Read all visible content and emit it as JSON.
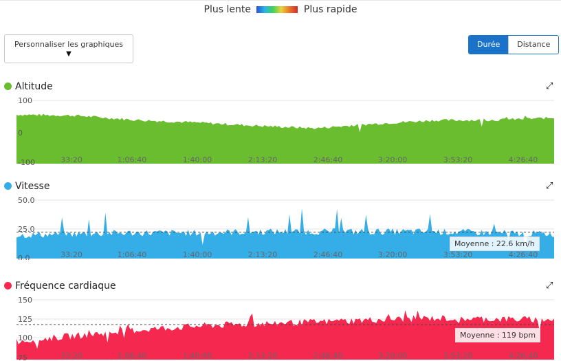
{
  "legend": {
    "slow": "Plus lente",
    "fast": "Plus rapide"
  },
  "customize_label": "Personnaliser les graphiques",
  "toggle": {
    "duration": "Durée",
    "distance": "Distance"
  },
  "x_ticks": [
    "33:20",
    "1:06:40",
    "1:40:00",
    "2:13:20",
    "2:46:40",
    "3:20:00",
    "3:53:20",
    "4:26:40"
  ],
  "colors": {
    "altitude": "#6abd2f",
    "speed": "#35ade6",
    "hr": "#f5284f",
    "accent": "#1a73c8"
  },
  "charts": [
    {
      "key": "altitude",
      "title": "Altitude",
      "y_ticks": [
        "100",
        "0",
        "-100"
      ],
      "avg_label": ""
    },
    {
      "key": "speed",
      "title": "Vitesse",
      "y_ticks": [
        "50.0",
        "25.0",
        "0.0"
      ],
      "avg_label": "Moyenne : 22.6 km/h"
    },
    {
      "key": "hr",
      "title": "Fréquence cardiaque",
      "y_ticks": [
        "150",
        "125",
        "100",
        "75"
      ],
      "avg_label": "Moyenne : 119 bpm"
    }
  ],
  "chart_data": [
    {
      "type": "area",
      "title": "Altitude",
      "ylim": [
        -100,
        100
      ],
      "x": [
        "0:00",
        "33:20",
        "1:06:40",
        "1:40:00",
        "2:13:20",
        "2:46:40",
        "3:20:00",
        "3:53:20",
        "4:26:40",
        "4:40:00"
      ],
      "values": [
        55,
        52,
        38,
        30,
        20,
        12,
        26,
        37,
        38,
        45
      ]
    },
    {
      "type": "area",
      "title": "Vitesse",
      "ylim": [
        0,
        50
      ],
      "average": 22.6,
      "x": [
        "0:00",
        "33:20",
        "1:06:40",
        "1:40:00",
        "2:13:20",
        "2:46:40",
        "3:20:00",
        "3:53:20",
        "4:26:40",
        "4:40:00"
      ],
      "values": [
        20,
        21,
        22,
        22,
        23,
        23,
        23,
        23,
        22,
        21
      ]
    },
    {
      "type": "area",
      "title": "Fréquence cardiaque",
      "ylim": [
        75,
        150
      ],
      "average": 119,
      "x": [
        "0:00",
        "33:20",
        "1:06:40",
        "1:40:00",
        "2:13:20",
        "2:46:40",
        "3:20:00",
        "3:53:20",
        "4:26:40",
        "4:40:00"
      ],
      "values": [
        98,
        105,
        112,
        117,
        120,
        122,
        125,
        127,
        126,
        125
      ]
    }
  ]
}
